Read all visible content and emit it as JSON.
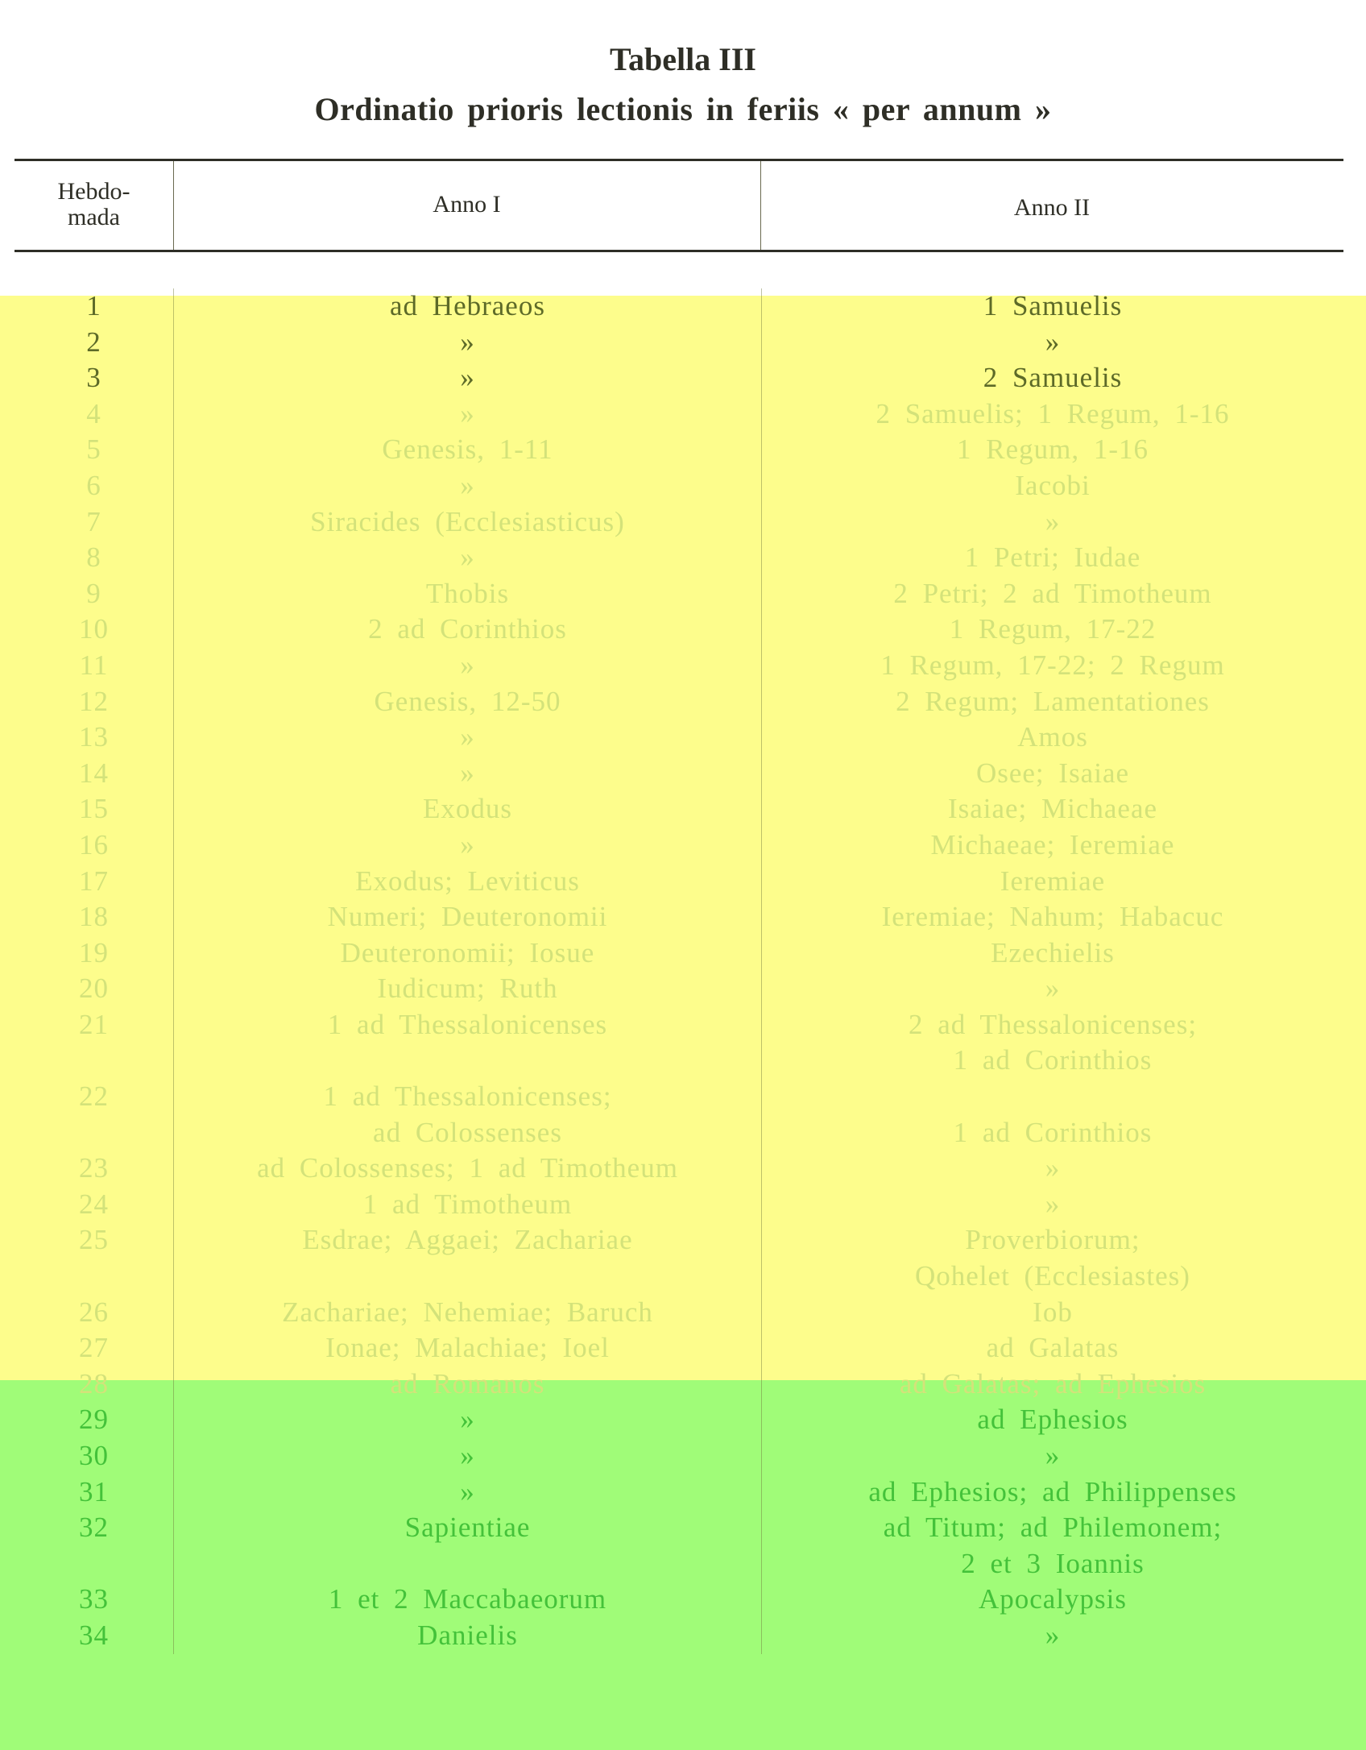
{
  "title": "Tabella III",
  "subtitle": "Ordinatio prioris lectionis in feriis « per annum »",
  "header": {
    "week_line1": "Hebdo-",
    "week_line2": "mada",
    "year1": "Anno I",
    "year2": "Anno II"
  },
  "colors": {
    "yellow_band": "#fdfd8c",
    "green_band": "#a0fc78"
  },
  "rows": [
    {
      "week": "1",
      "anno1": [
        "ad Hebraeos"
      ],
      "anno2": [
        "1 Samuelis"
      ]
    },
    {
      "week": "2",
      "anno1": [
        "»"
      ],
      "anno2": [
        "»"
      ]
    },
    {
      "week": "3",
      "anno1": [
        "»"
      ],
      "anno2": [
        "2 Samuelis"
      ]
    },
    {
      "week": "4",
      "anno1": [
        "»"
      ],
      "anno2": [
        "2 Samuelis; 1 Regum, 1-16"
      ]
    },
    {
      "week": "5",
      "anno1": [
        "Genesis, 1-11"
      ],
      "anno2": [
        "1 Regum, 1-16"
      ]
    },
    {
      "week": "6",
      "anno1": [
        "»"
      ],
      "anno2": [
        "Iacobi"
      ]
    },
    {
      "week": "7",
      "anno1": [
        "Siracides (Ecclesiasticus)"
      ],
      "anno2": [
        "»"
      ]
    },
    {
      "week": "8",
      "anno1": [
        "»"
      ],
      "anno2": [
        "1 Petri; Iudae"
      ]
    },
    {
      "week": "9",
      "anno1": [
        "Thobis"
      ],
      "anno2": [
        "2 Petri; 2 ad Timotheum"
      ]
    },
    {
      "week": "10",
      "anno1": [
        "2 ad Corinthios"
      ],
      "anno2": [
        "1 Regum, 17-22"
      ]
    },
    {
      "week": "11",
      "anno1": [
        "»"
      ],
      "anno2": [
        "1 Regum, 17-22; 2 Regum"
      ]
    },
    {
      "week": "12",
      "anno1": [
        "Genesis, 12-50"
      ],
      "anno2": [
        "2 Regum; Lamentationes"
      ]
    },
    {
      "week": "13",
      "anno1": [
        "»"
      ],
      "anno2": [
        "Amos"
      ]
    },
    {
      "week": "14",
      "anno1": [
        "»"
      ],
      "anno2": [
        "Osee; Isaiae"
      ]
    },
    {
      "week": "15",
      "anno1": [
        "Exodus"
      ],
      "anno2": [
        "Isaiae; Michaeae"
      ]
    },
    {
      "week": "16",
      "anno1": [
        "»"
      ],
      "anno2": [
        "Michaeae; Ieremiae"
      ]
    },
    {
      "week": "17",
      "anno1": [
        "Exodus; Leviticus"
      ],
      "anno2": [
        "Ieremiae"
      ]
    },
    {
      "week": "18",
      "anno1": [
        "Numeri; Deuteronomii"
      ],
      "anno2": [
        "Ieremiae; Nahum; Habacuc"
      ]
    },
    {
      "week": "19",
      "anno1": [
        "Deuteronomii; Iosue"
      ],
      "anno2": [
        "Ezechielis"
      ]
    },
    {
      "week": "20",
      "anno1": [
        "Iudicum; Ruth"
      ],
      "anno2": [
        "»"
      ]
    },
    {
      "week": "21",
      "anno1": [
        "1 ad Thessalonicenses"
      ],
      "anno2": [
        "2 ad Thessalonicenses;",
        "1 ad Corinthios"
      ]
    },
    {
      "week": "22",
      "anno1": [
        "1 ad Thessalonicenses;",
        "ad Colossenses"
      ],
      "anno2": [
        "1 ad Corinthios"
      ],
      "anno2_bottom": true
    },
    {
      "week": "23",
      "anno1": [
        "ad Colossenses; 1 ad Timotheum"
      ],
      "anno2": [
        "»"
      ]
    },
    {
      "week": "24",
      "anno1": [
        "1 ad Timotheum"
      ],
      "anno2": [
        "»"
      ]
    },
    {
      "week": "25",
      "anno1": [
        "Esdrae; Aggaei; Zachariae"
      ],
      "anno2": [
        "Proverbiorum;",
        "Qohelet (Ecclesiastes)"
      ]
    },
    {
      "week": "26",
      "anno1": [
        "Zachariae; Nehemiae; Baruch"
      ],
      "anno2": [
        "Iob"
      ]
    },
    {
      "week": "27",
      "anno1": [
        "Ionae; Malachiae; Ioel"
      ],
      "anno2": [
        "ad Galatas"
      ]
    },
    {
      "week": "28",
      "anno1": [
        "ad Romanos"
      ],
      "anno2": [
        "ad Galatas; ad Ephesios"
      ]
    },
    {
      "week": "29",
      "anno1": [
        "»"
      ],
      "anno2": [
        "ad Ephesios"
      ]
    },
    {
      "week": "30",
      "anno1": [
        "»"
      ],
      "anno2": [
        "»"
      ]
    },
    {
      "week": "31",
      "anno1": [
        "»"
      ],
      "anno2": [
        "ad Ephesios; ad Philippenses"
      ]
    },
    {
      "week": "32",
      "anno1": [
        "Sapientiae"
      ],
      "anno2": [
        "ad Titum; ad Philemonem;",
        "2 et 3 Ioannis"
      ]
    },
    {
      "week": "33",
      "anno1": [
        "1 et 2 Maccabaeorum"
      ],
      "anno2": [
        "Apocalypsis"
      ]
    },
    {
      "week": "34",
      "anno1": [
        "Danielis"
      ],
      "anno2": [
        "»"
      ]
    }
  ]
}
